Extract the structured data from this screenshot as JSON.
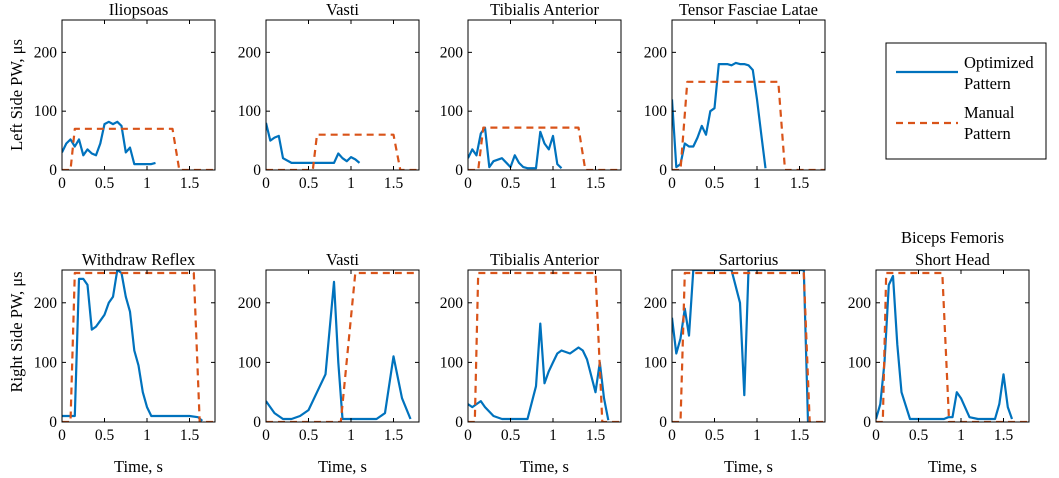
{
  "colors": {
    "optimized": "#0072BD",
    "manual": "#D95319",
    "axis": "#000000"
  },
  "legend": {
    "optimized": [
      "Optimized",
      "Pattern"
    ],
    "manual": [
      "Manual",
      "Pattern"
    ]
  },
  "ylabels": {
    "left": "Left Side PW, μs",
    "right": "Right Side PW, μs"
  },
  "xlabel": "Time, s",
  "chart_data": [
    {
      "type": "line",
      "side": "left",
      "title": [
        "Iliopsoas"
      ],
      "xlim": [
        0,
        1.8
      ],
      "ylim": [
        0,
        255
      ],
      "xticks": [
        0,
        0.5,
        1,
        1.5
      ],
      "xticklabels": [
        "0",
        "0.5",
        "1",
        "1.5"
      ],
      "yticks": [
        0,
        100,
        200
      ],
      "yticklabels": [
        "0",
        "100",
        "200"
      ],
      "series": [
        {
          "name": "Optimized Pattern",
          "x": [
            0,
            0.05,
            0.1,
            0.15,
            0.2,
            0.25,
            0.3,
            0.35,
            0.4,
            0.45,
            0.5,
            0.55,
            0.6,
            0.65,
            0.7,
            0.75,
            0.8,
            0.85,
            0.9,
            0.95,
            1.0,
            1.05,
            1.1
          ],
          "y": [
            30,
            45,
            52,
            40,
            52,
            25,
            35,
            28,
            25,
            45,
            78,
            82,
            78,
            82,
            75,
            30,
            38,
            10,
            10,
            10,
            10,
            10,
            12
          ]
        },
        {
          "name": "Manual Pattern",
          "x": [
            0,
            0.1,
            0.15,
            1.3,
            1.38,
            1.8
          ],
          "y": [
            0,
            0,
            70,
            70,
            0,
            0
          ]
        }
      ]
    },
    {
      "type": "line",
      "side": "left",
      "title": [
        "Vasti"
      ],
      "xlim": [
        0,
        1.8
      ],
      "ylim": [
        0,
        255
      ],
      "xticks": [
        0,
        0.5,
        1,
        1.5
      ],
      "xticklabels": [
        "0",
        "0.5",
        "1",
        "1.5"
      ],
      "yticks": [
        0,
        100,
        200
      ],
      "yticklabels": [
        "0",
        "100",
        "200"
      ],
      "series": [
        {
          "name": "Optimized Pattern",
          "x": [
            0,
            0.05,
            0.1,
            0.15,
            0.2,
            0.3,
            0.4,
            0.5,
            0.6,
            0.7,
            0.8,
            0.85,
            0.9,
            0.95,
            1.0,
            1.05,
            1.1
          ],
          "y": [
            80,
            50,
            55,
            58,
            20,
            12,
            12,
            12,
            12,
            12,
            12,
            28,
            20,
            15,
            22,
            18,
            12
          ]
        },
        {
          "name": "Manual Pattern",
          "x": [
            0,
            0.55,
            0.6,
            1.5,
            1.58,
            1.8
          ],
          "y": [
            0,
            0,
            60,
            60,
            0,
            0
          ]
        }
      ]
    },
    {
      "type": "line",
      "side": "left",
      "title": [
        "Tibialis Anterior"
      ],
      "xlim": [
        0,
        1.8
      ],
      "ylim": [
        0,
        255
      ],
      "xticks": [
        0,
        0.5,
        1,
        1.5
      ],
      "xticklabels": [
        "0",
        "0.5",
        "1",
        "1.5"
      ],
      "yticks": [
        0,
        100,
        200
      ],
      "yticklabels": [
        "0",
        "100",
        "200"
      ],
      "series": [
        {
          "name": "Optimized Pattern",
          "x": [
            0,
            0.05,
            0.1,
            0.15,
            0.2,
            0.25,
            0.3,
            0.4,
            0.5,
            0.55,
            0.6,
            0.65,
            0.7,
            0.75,
            0.8,
            0.85,
            0.9,
            0.95,
            1.0,
            1.05,
            1.1
          ],
          "y": [
            20,
            35,
            25,
            62,
            72,
            5,
            15,
            20,
            5,
            25,
            12,
            5,
            3,
            3,
            3,
            65,
            45,
            35,
            58,
            10,
            3
          ]
        },
        {
          "name": "Manual Pattern",
          "x": [
            0,
            0.12,
            0.18,
            1.3,
            1.38,
            1.8
          ],
          "y": [
            0,
            0,
            72,
            72,
            0,
            0
          ]
        }
      ]
    },
    {
      "type": "line",
      "side": "left",
      "title": [
        "Tensor Fasciae Latae"
      ],
      "xlim": [
        0,
        1.8
      ],
      "ylim": [
        0,
        255
      ],
      "xticks": [
        0,
        0.5,
        1,
        1.5
      ],
      "xticklabels": [
        "0",
        "0.5",
        "1",
        "1.5"
      ],
      "yticks": [
        0,
        100,
        200
      ],
      "yticklabels": [
        "0",
        "100",
        "200"
      ],
      "series": [
        {
          "name": "Optimized Pattern",
          "x": [
            0,
            0.05,
            0.1,
            0.15,
            0.2,
            0.25,
            0.3,
            0.35,
            0.4,
            0.45,
            0.5,
            0.55,
            0.6,
            0.65,
            0.7,
            0.75,
            0.8,
            0.85,
            0.9,
            0.95,
            1.0,
            1.05,
            1.1
          ],
          "y": [
            120,
            5,
            10,
            45,
            40,
            40,
            55,
            75,
            60,
            100,
            105,
            180,
            180,
            180,
            178,
            182,
            180,
            180,
            178,
            170,
            120,
            60,
            3
          ]
        },
        {
          "name": "Manual Pattern",
          "x": [
            0,
            0.1,
            0.18,
            1.25,
            1.33,
            1.8
          ],
          "y": [
            0,
            0,
            150,
            150,
            0,
            0
          ]
        }
      ]
    },
    {
      "type": "line",
      "side": "right",
      "title": [
        "Withdraw Reflex"
      ],
      "xlim": [
        0,
        1.8
      ],
      "ylim": [
        0,
        255
      ],
      "xticks": [
        0,
        0.5,
        1,
        1.5
      ],
      "xticklabels": [
        "0",
        "0.5",
        "1",
        "1.5"
      ],
      "yticks": [
        0,
        100,
        200
      ],
      "yticklabels": [
        "0",
        "100",
        "200"
      ],
      "series": [
        {
          "name": "Optimized Pattern",
          "x": [
            0,
            0.05,
            0.1,
            0.15,
            0.2,
            0.25,
            0.3,
            0.35,
            0.4,
            0.45,
            0.5,
            0.55,
            0.6,
            0.65,
            0.7,
            0.75,
            0.8,
            0.85,
            0.9,
            0.95,
            1.0,
            1.05,
            1.1,
            1.2,
            1.3,
            1.4,
            1.5,
            1.6,
            1.65
          ],
          "y": [
            10,
            10,
            10,
            10,
            240,
            240,
            230,
            155,
            160,
            170,
            180,
            200,
            210,
            255,
            250,
            210,
            185,
            120,
            95,
            50,
            25,
            10,
            10,
            10,
            10,
            10,
            10,
            8,
            2
          ]
        },
        {
          "name": "Manual Pattern",
          "x": [
            0,
            0.1,
            0.15,
            1.55,
            1.62,
            1.8
          ],
          "y": [
            0,
            0,
            250,
            250,
            0,
            0
          ]
        }
      ]
    },
    {
      "type": "line",
      "side": "right",
      "title": [
        "Vasti"
      ],
      "xlim": [
        0,
        1.8
      ],
      "ylim": [
        0,
        255
      ],
      "xticks": [
        0,
        0.5,
        1,
        1.5
      ],
      "xticklabels": [
        "0",
        "0.5",
        "1",
        "1.5"
      ],
      "yticks": [
        0,
        100,
        200
      ],
      "yticklabels": [
        "0",
        "100",
        "200"
      ],
      "series": [
        {
          "name": "Optimized Pattern",
          "x": [
            0,
            0.1,
            0.2,
            0.3,
            0.4,
            0.5,
            0.6,
            0.7,
            0.8,
            0.85,
            0.9,
            0.95,
            1.0,
            1.1,
            1.2,
            1.3,
            1.4,
            1.5,
            1.6,
            1.7
          ],
          "y": [
            35,
            15,
            5,
            5,
            10,
            20,
            50,
            80,
            235,
            100,
            5,
            5,
            5,
            5,
            5,
            5,
            15,
            110,
            40,
            5
          ]
        },
        {
          "name": "Manual Pattern",
          "x": [
            0,
            0.88,
            1.05,
            1.8
          ],
          "y": [
            0,
            0,
            250,
            250
          ]
        }
      ]
    },
    {
      "type": "line",
      "side": "right",
      "title": [
        "Tibialis Anterior"
      ],
      "xlim": [
        0,
        1.8
      ],
      "ylim": [
        0,
        255
      ],
      "xticks": [
        0,
        0.5,
        1,
        1.5
      ],
      "xticklabels": [
        "0",
        "0.5",
        "1",
        "1.5"
      ],
      "yticks": [
        0,
        100,
        200
      ],
      "yticklabels": [
        "0",
        "100",
        "200"
      ],
      "series": [
        {
          "name": "Optimized Pattern",
          "x": [
            0,
            0.05,
            0.1,
            0.15,
            0.2,
            0.3,
            0.4,
            0.5,
            0.6,
            0.7,
            0.8,
            0.85,
            0.9,
            0.95,
            1.0,
            1.05,
            1.1,
            1.2,
            1.3,
            1.35,
            1.4,
            1.5,
            1.55,
            1.6,
            1.65
          ],
          "y": [
            30,
            25,
            30,
            35,
            25,
            10,
            5,
            5,
            5,
            5,
            60,
            165,
            65,
            85,
            100,
            115,
            120,
            115,
            125,
            120,
            105,
            50,
            100,
            40,
            3
          ]
        },
        {
          "name": "Manual Pattern",
          "x": [
            0,
            0.08,
            0.12,
            1.5,
            1.58,
            1.8
          ],
          "y": [
            0,
            0,
            250,
            250,
            0,
            0
          ]
        }
      ]
    },
    {
      "type": "line",
      "side": "right",
      "title": [
        "Sartorius"
      ],
      "xlim": [
        0,
        1.8
      ],
      "ylim": [
        0,
        255
      ],
      "xticks": [
        0,
        0.5,
        1,
        1.5
      ],
      "xticklabels": [
        "0",
        "0.5",
        "1",
        "1.5"
      ],
      "yticks": [
        0,
        100,
        200
      ],
      "yticklabels": [
        "0",
        "100",
        "200"
      ],
      "series": [
        {
          "name": "Optimized Pattern",
          "x": [
            0,
            0.05,
            0.1,
            0.15,
            0.2,
            0.25,
            0.3,
            0.4,
            0.5,
            0.6,
            0.7,
            0.8,
            0.85,
            0.9,
            1.0,
            1.1,
            1.2,
            1.3,
            1.4,
            1.5,
            1.55,
            1.6
          ],
          "y": [
            175,
            115,
            140,
            190,
            145,
            255,
            255,
            255,
            255,
            255,
            255,
            200,
            45,
            255,
            255,
            255,
            255,
            255,
            255,
            255,
            255,
            0
          ]
        },
        {
          "name": "Manual Pattern",
          "x": [
            0,
            0.1,
            0.15,
            1.55,
            1.62,
            1.8
          ],
          "y": [
            0,
            0,
            250,
            250,
            0,
            0
          ]
        }
      ]
    },
    {
      "type": "line",
      "side": "right",
      "title": [
        "Biceps Femoris",
        "Short Head"
      ],
      "xlim": [
        0,
        1.8
      ],
      "ylim": [
        0,
        255
      ],
      "xticks": [
        0,
        0.5,
        1,
        1.5
      ],
      "xticklabels": [
        "0",
        "0.5",
        "1",
        "1.5"
      ],
      "yticks": [
        0,
        100,
        200
      ],
      "yticklabels": [
        "0",
        "100",
        "200"
      ],
      "series": [
        {
          "name": "Optimized Pattern",
          "x": [
            0,
            0.05,
            0.1,
            0.15,
            0.2,
            0.25,
            0.3,
            0.4,
            0.5,
            0.6,
            0.7,
            0.8,
            0.85,
            0.9,
            0.95,
            1.0,
            1.1,
            1.2,
            1.3,
            1.4,
            1.45,
            1.5,
            1.55,
            1.6
          ],
          "y": [
            5,
            30,
            100,
            230,
            245,
            130,
            50,
            5,
            5,
            5,
            5,
            5,
            8,
            8,
            50,
            40,
            8,
            5,
            5,
            5,
            30,
            80,
            25,
            5
          ]
        },
        {
          "name": "Manual Pattern",
          "x": [
            0,
            0.08,
            0.12,
            0.78,
            0.86,
            1.8
          ],
          "y": [
            0,
            0,
            250,
            250,
            0,
            0
          ]
        }
      ]
    }
  ]
}
